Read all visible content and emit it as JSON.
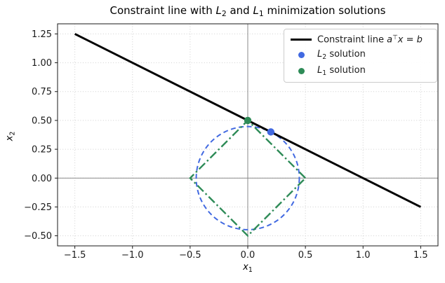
{
  "chart_data": {
    "type": "line",
    "title_text": "Constraint line with L2 and L1 minimization solutions",
    "title_parts": [
      {
        "t": "Constraint line with "
      },
      {
        "t": "L",
        "i": 1
      },
      {
        "t": "2",
        "v": "sub"
      },
      {
        "t": " and "
      },
      {
        "t": "L",
        "i": 1
      },
      {
        "t": "1",
        "v": "sub"
      },
      {
        "t": " minimization solutions"
      }
    ],
    "xlabel_text": "x1",
    "xlabel_parts": [
      {
        "t": "x",
        "i": 1
      },
      {
        "t": "1",
        "v": "sub"
      }
    ],
    "ylabel_text": "x2",
    "ylabel_parts": [
      {
        "t": "x",
        "i": 1
      },
      {
        "t": "2",
        "v": "sub"
      }
    ],
    "xlim": [
      -1.65,
      1.65
    ],
    "ylim": [
      -0.5875,
      1.3375
    ],
    "grid": true,
    "x_ticks": {
      "values": [
        -1.5,
        -1.0,
        -0.5,
        0.0,
        0.5,
        1.0,
        1.5
      ],
      "labels": [
        "−1.5",
        "−1.0",
        "−0.5",
        "0.0",
        "0.5",
        "1.0",
        "1.5"
      ]
    },
    "y_ticks": {
      "values": [
        -0.5,
        -0.25,
        0.0,
        0.25,
        0.5,
        0.75,
        1.0,
        1.25
      ],
      "labels": [
        "−0.50",
        "−0.25",
        "0.00",
        "0.25",
        "0.50",
        "0.75",
        "1.00",
        "1.25"
      ]
    },
    "colors": {
      "constraint_line": "#000000",
      "l2": "#4169e1",
      "l1": "#2e8b57",
      "grid": "#cfcfcf",
      "zero_axis": "#8a8a8a",
      "spine": "#1a1a1a"
    },
    "constraint_line": {
      "x": [
        -1.5,
        1.5
      ],
      "y": [
        1.25,
        -0.25
      ],
      "linewidth": 3
    },
    "l2_ball": {
      "center": [
        0,
        0
      ],
      "radius": 0.4472,
      "style": "dashed"
    },
    "l1_ball": {
      "vertices": [
        [
          0.5,
          0
        ],
        [
          0,
          0.5
        ],
        [
          -0.5,
          0
        ],
        [
          0,
          -0.5
        ]
      ],
      "style": "dashdot"
    },
    "l2_solution": {
      "x": 0.2,
      "y": 0.4
    },
    "l1_solution": {
      "x": 0.0,
      "y": 0.5
    },
    "legend": {
      "position": "upper right",
      "items": [
        {
          "label_text": "Constraint line a⊤x = b",
          "parts": [
            {
              "t": "Constraint line "
            },
            {
              "t": "a",
              "i": 1
            },
            {
              "t": "⊤",
              "v": "sup"
            },
            {
              "t": "x",
              "i": 1
            },
            {
              "t": " = "
            },
            {
              "t": "b",
              "i": 1
            }
          ],
          "marker": "line",
          "color": "#000000"
        },
        {
          "label_text": "L2 solution",
          "parts": [
            {
              "t": "L",
              "i": 1
            },
            {
              "t": "2",
              "v": "sub"
            },
            {
              "t": " solution"
            }
          ],
          "marker": "dot",
          "color": "#4169e1"
        },
        {
          "label_text": "L1 solution",
          "parts": [
            {
              "t": "L",
              "i": 1
            },
            {
              "t": "1",
              "v": "sub"
            },
            {
              "t": " solution"
            }
          ],
          "marker": "dot",
          "color": "#2e8b57"
        }
      ]
    }
  }
}
